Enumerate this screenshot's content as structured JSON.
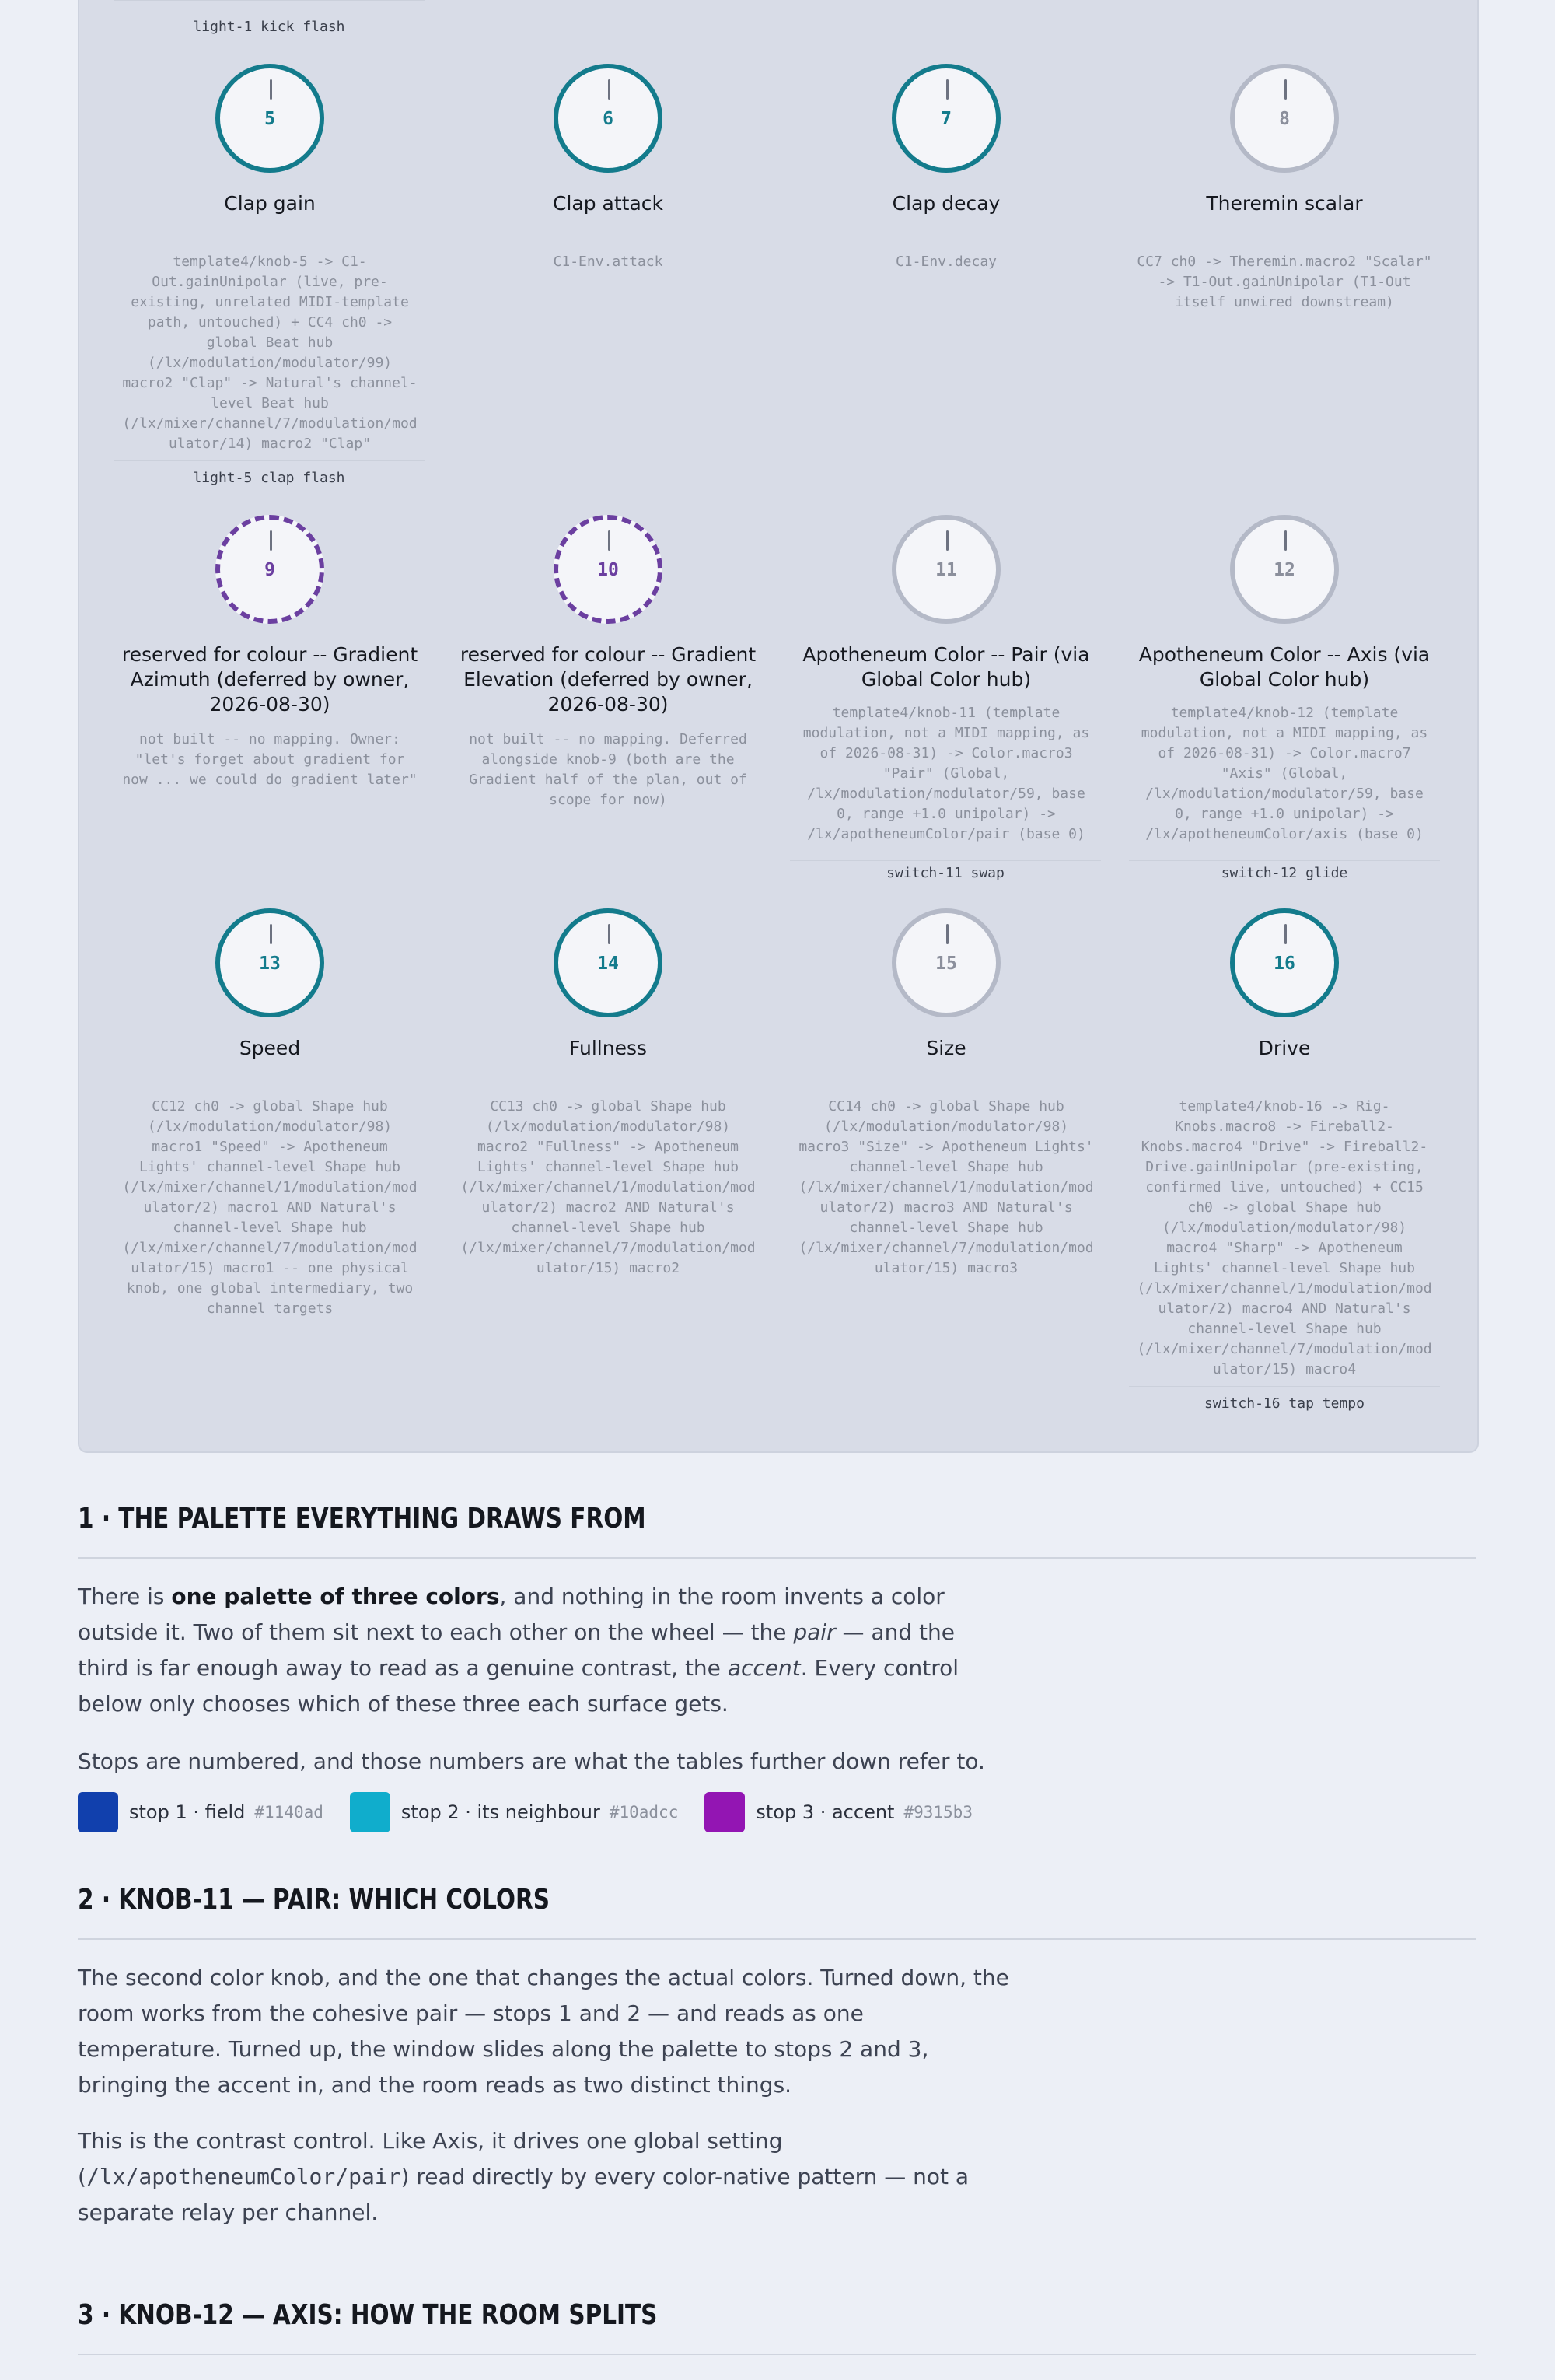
{
  "panel": {
    "flash_1": "light-1 kick flash",
    "flash_5": "light-5 clap flash",
    "switch_11": "switch-11 swap",
    "switch_12": "switch-12 glide",
    "switch_16": "switch-16 tap tempo"
  },
  "knobs": [
    {
      "num": "5",
      "title": "Clap gain",
      "desc": "template4/knob-5 -> C1-\nOut.gainUnipolar (live, pre-\nexisting, unrelated MIDI-template\npath, untouched) + CC4 ch0 ->\nglobal Beat hub\n(/lx/modulation/modulator/99)\nmacro2 \"Clap\" -> Natural's channel-\nlevel Beat hub\n(/lx/mixer/channel/7/modulation/mod\nulator/14) macro2 \"Clap\"",
      "style": "teal"
    },
    {
      "num": "6",
      "title": "Clap attack",
      "desc": "C1-Env.attack",
      "style": "teal"
    },
    {
      "num": "7",
      "title": "Clap decay",
      "desc": "C1-Env.decay",
      "style": "teal"
    },
    {
      "num": "8",
      "title": "Theremin scalar",
      "desc": "CC7 ch0 -> Theremin.macro2 \"Scalar\"\n-> T1-Out.gainUnipolar (T1-Out\nitself unwired downstream)",
      "style": "grey"
    },
    {
      "num": "9",
      "title": "reserved for colour -- Gradient Azimuth (deferred by owner, 2026-08-30)",
      "desc": "not built -- no mapping. Owner:\n\"let's forget about gradient for\nnow ... we could do gradient later\"",
      "style": "dashed"
    },
    {
      "num": "10",
      "title": "reserved for colour -- Gradient Elevation (deferred by owner, 2026-08-30)",
      "desc": "not built -- no mapping. Deferred\nalongside knob-9 (both are the\nGradient half of the plan, out of\nscope for now)",
      "style": "dashed"
    },
    {
      "num": "11",
      "title": "Apotheneum Color -- Pair (via Global Color hub)",
      "desc": "template4/knob-11 (template\nmodulation, not a MIDI mapping, as\nof 2026-08-31) -> Color.macro3\n\"Pair\" (Global,\n/lx/modulation/modulator/59, base\n0, range +1.0 unipolar) ->\n/lx/apotheneumColor/pair (base 0)",
      "style": "grey"
    },
    {
      "num": "12",
      "title": "Apotheneum Color -- Axis (via Global Color hub)",
      "desc": "template4/knob-12 (template\nmodulation, not a MIDI mapping, as\nof 2026-08-31) -> Color.macro7\n\"Axis\" (Global,\n/lx/modulation/modulator/59, base\n0, range +1.0 unipolar) ->\n/lx/apotheneumColor/axis (base 0)",
      "style": "grey"
    },
    {
      "num": "13",
      "title": "Speed",
      "desc": "CC12 ch0 -> global Shape hub\n(/lx/modulation/modulator/98)\nmacro1 \"Speed\" -> Apotheneum\nLights' channel-level Shape hub\n(/lx/mixer/channel/1/modulation/mod\nulator/2) macro1 AND Natural's\nchannel-level Shape hub\n(/lx/mixer/channel/7/modulation/mod\nulator/15) macro1 -- one physical\nknob, one global intermediary, two\nchannel targets",
      "style": "teal"
    },
    {
      "num": "14",
      "title": "Fullness",
      "desc": "CC13 ch0 -> global Shape hub\n(/lx/modulation/modulator/98)\nmacro2 \"Fullness\" -> Apotheneum\nLights' channel-level Shape hub\n(/lx/mixer/channel/1/modulation/mod\nulator/2) macro2 AND Natural's\nchannel-level Shape hub\n(/lx/mixer/channel/7/modulation/mod\nulator/15) macro2",
      "style": "teal"
    },
    {
      "num": "15",
      "title": "Size",
      "desc": "CC14 ch0 -> global Shape hub\n(/lx/modulation/modulator/98)\nmacro3 \"Size\" -> Apotheneum Lights'\nchannel-level Shape hub\n(/lx/mixer/channel/1/modulation/mod\nulator/2) macro3 AND Natural's\nchannel-level Shape hub\n(/lx/mixer/channel/7/modulation/mod\nulator/15) macro3",
      "style": "grey"
    },
    {
      "num": "16",
      "title": "Drive",
      "desc": "template4/knob-16 -> Rig-\nKnobs.macro8 -> Fireball2-\nKnobs.macro4 \"Drive\" -> Fireball2-\nDrive.gainUnipolar (pre-existing,\nconfirmed live, untouched) + CC15\nch0 -> global Shape hub\n(/lx/modulation/modulator/98)\nmacro4 \"Sharp\" -> Apotheneum\nLights' channel-level Shape hub\n(/lx/mixer/channel/1/modulation/mod\nulator/2) macro4 AND Natural's\nchannel-level Shape hub\n(/lx/mixer/channel/7/modulation/mod\nulator/15) macro4",
      "style": "teal"
    }
  ],
  "section1": {
    "heading": "1 · THE PALETTE EVERYTHING DRAWS FROM",
    "p1_a": "There is ",
    "p1_bold": "one palette of three colors",
    "p1_b": ", and nothing in the room invents a color outside it. Two of them sit next to each other on the wheel — the ",
    "p1_em1": "pair",
    "p1_c": " — and the third is far enough away to read as a genuine contrast, the ",
    "p1_em2": "accent",
    "p1_d": ". Every control below only chooses which of these three each surface gets.",
    "p2": "Stops are numbered, and those numbers are what the tables further down refer to.",
    "swatches": [
      {
        "label": "stop 1 · field",
        "hex": "#1140ad"
      },
      {
        "label": "stop 2 · its neighbour",
        "hex": "#10adcc"
      },
      {
        "label": "stop 3 · accent",
        "hex": "#9315b3"
      }
    ]
  },
  "section2": {
    "heading": "2 · KNOB-11 — PAIR: WHICH COLORS",
    "p1": "The second color knob, and the one that changes the actual colors. Turned down, the room works from the cohesive pair — stops 1 and 2 — and reads as one temperature. Turned up, the window slides along the palette to stops 2 and 3, bringing the accent in, and the room reads as two distinct things.",
    "p2_a": "This is the contrast control. Like Axis, it drives one global setting (",
    "p2_code": "/lx/apotheneumColor/pair",
    "p2_b": ") read directly by every color-native pattern — not a separate relay per channel."
  },
  "section3": {
    "heading": "3 · KNOB-12 — AXIS: HOW THE ROOM SPLITS"
  }
}
